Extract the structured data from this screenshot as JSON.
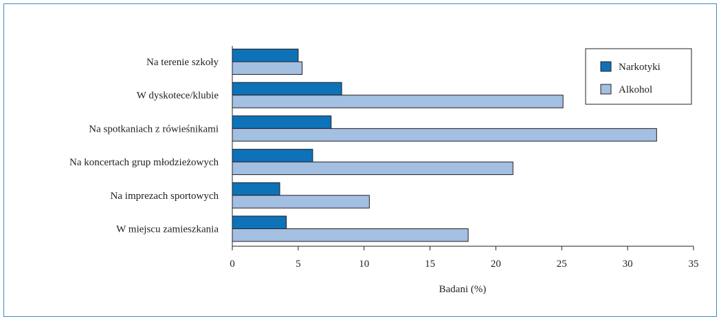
{
  "chart_data": {
    "type": "bar",
    "orientation": "horizontal",
    "categories": [
      "Na terenie szkoły",
      "W dyskotece/klubie",
      "Na spotkaniach z rówieśnikami",
      "Na koncertach grup młodzieżowych",
      "Na imprezach sportowych",
      "W miejscu zamieszkania"
    ],
    "series": [
      {
        "name": "Narkotyki",
        "values": [
          5.0,
          8.3,
          7.5,
          6.1,
          3.6,
          4.1
        ],
        "color": "#0e72b8"
      },
      {
        "name": "Alkohol",
        "values": [
          5.3,
          25.1,
          32.2,
          21.3,
          10.4,
          17.9
        ],
        "color": "#a3bfe2"
      }
    ],
    "xlabel": "Badani (%)",
    "xlim": [
      0,
      35
    ],
    "xticks": [
      0,
      5,
      10,
      15,
      20,
      25,
      30,
      35
    ],
    "legend_position": "top-right",
    "grid": false
  },
  "colors": {
    "frame": "#2f8fc7",
    "text": "#231f20"
  }
}
